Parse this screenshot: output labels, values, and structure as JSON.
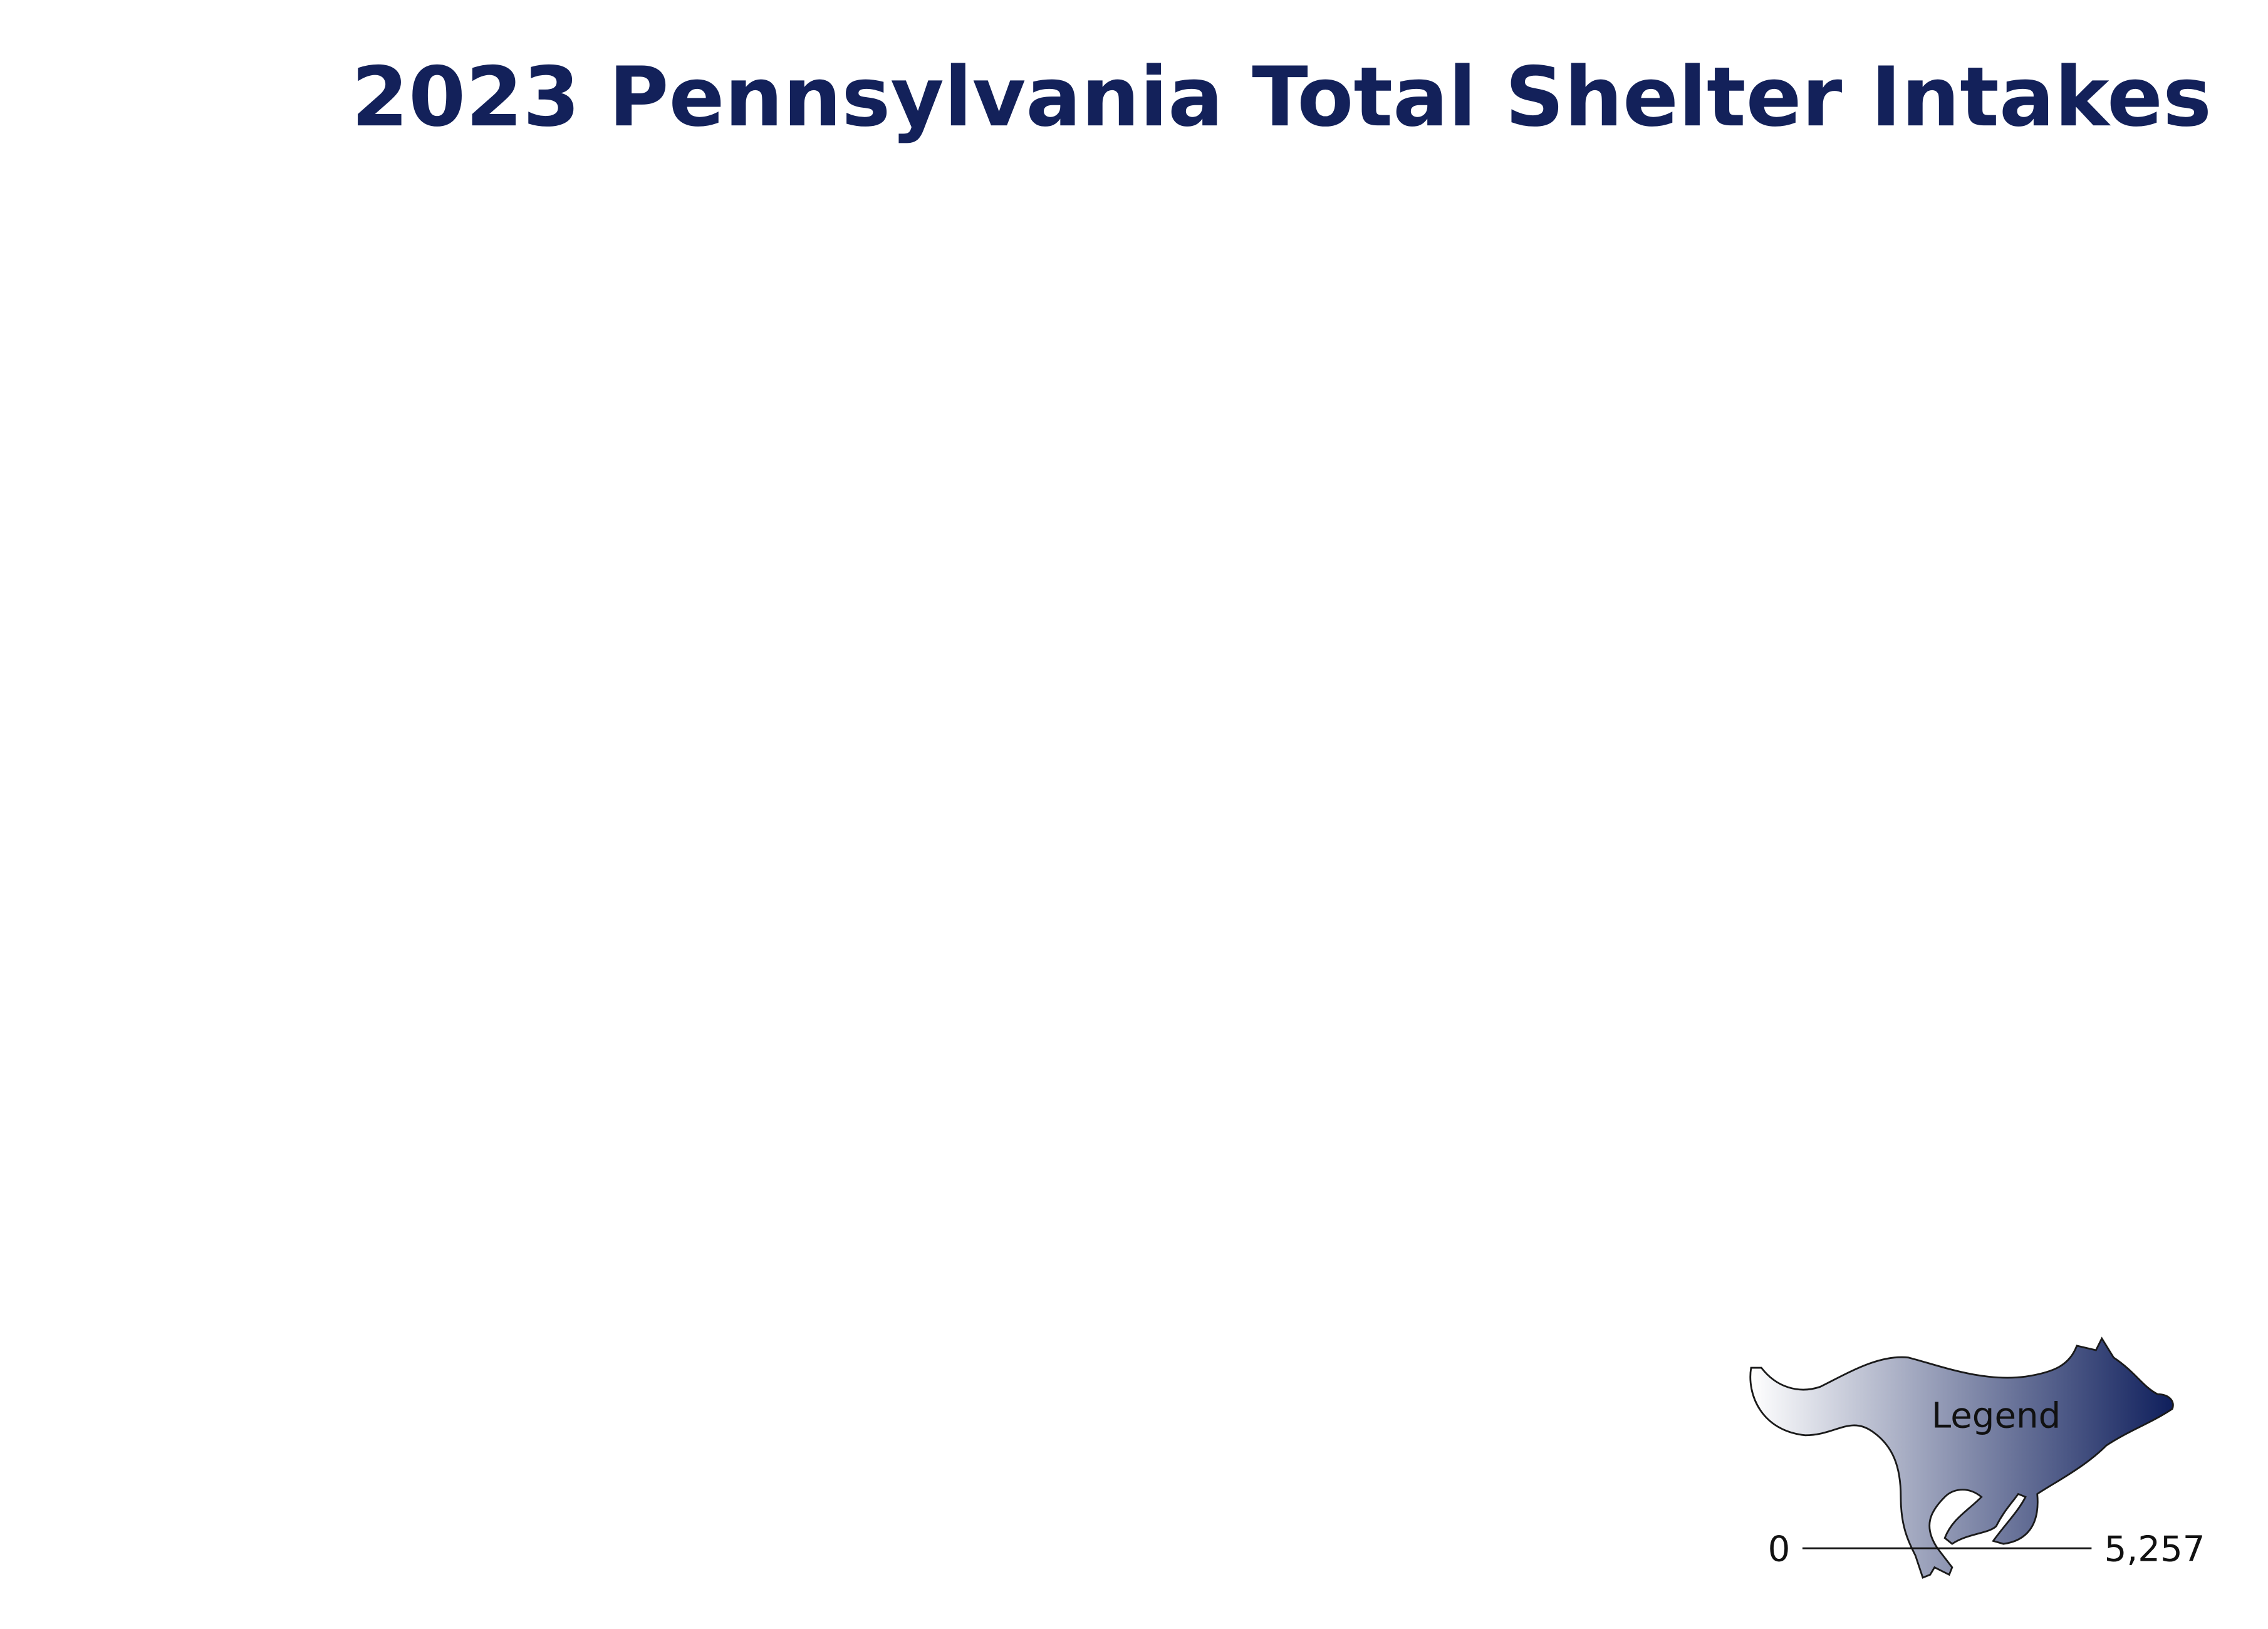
{
  "title": "2023 Pennsylvania Total Shelter Intakes",
  "legend": {
    "title": "Legend",
    "min": 0,
    "max": {
      "value": 5257,
      "label": "5,257"
    },
    "colors": [
      "#ffffff",
      "#0f1f5c"
    ]
  }
}
